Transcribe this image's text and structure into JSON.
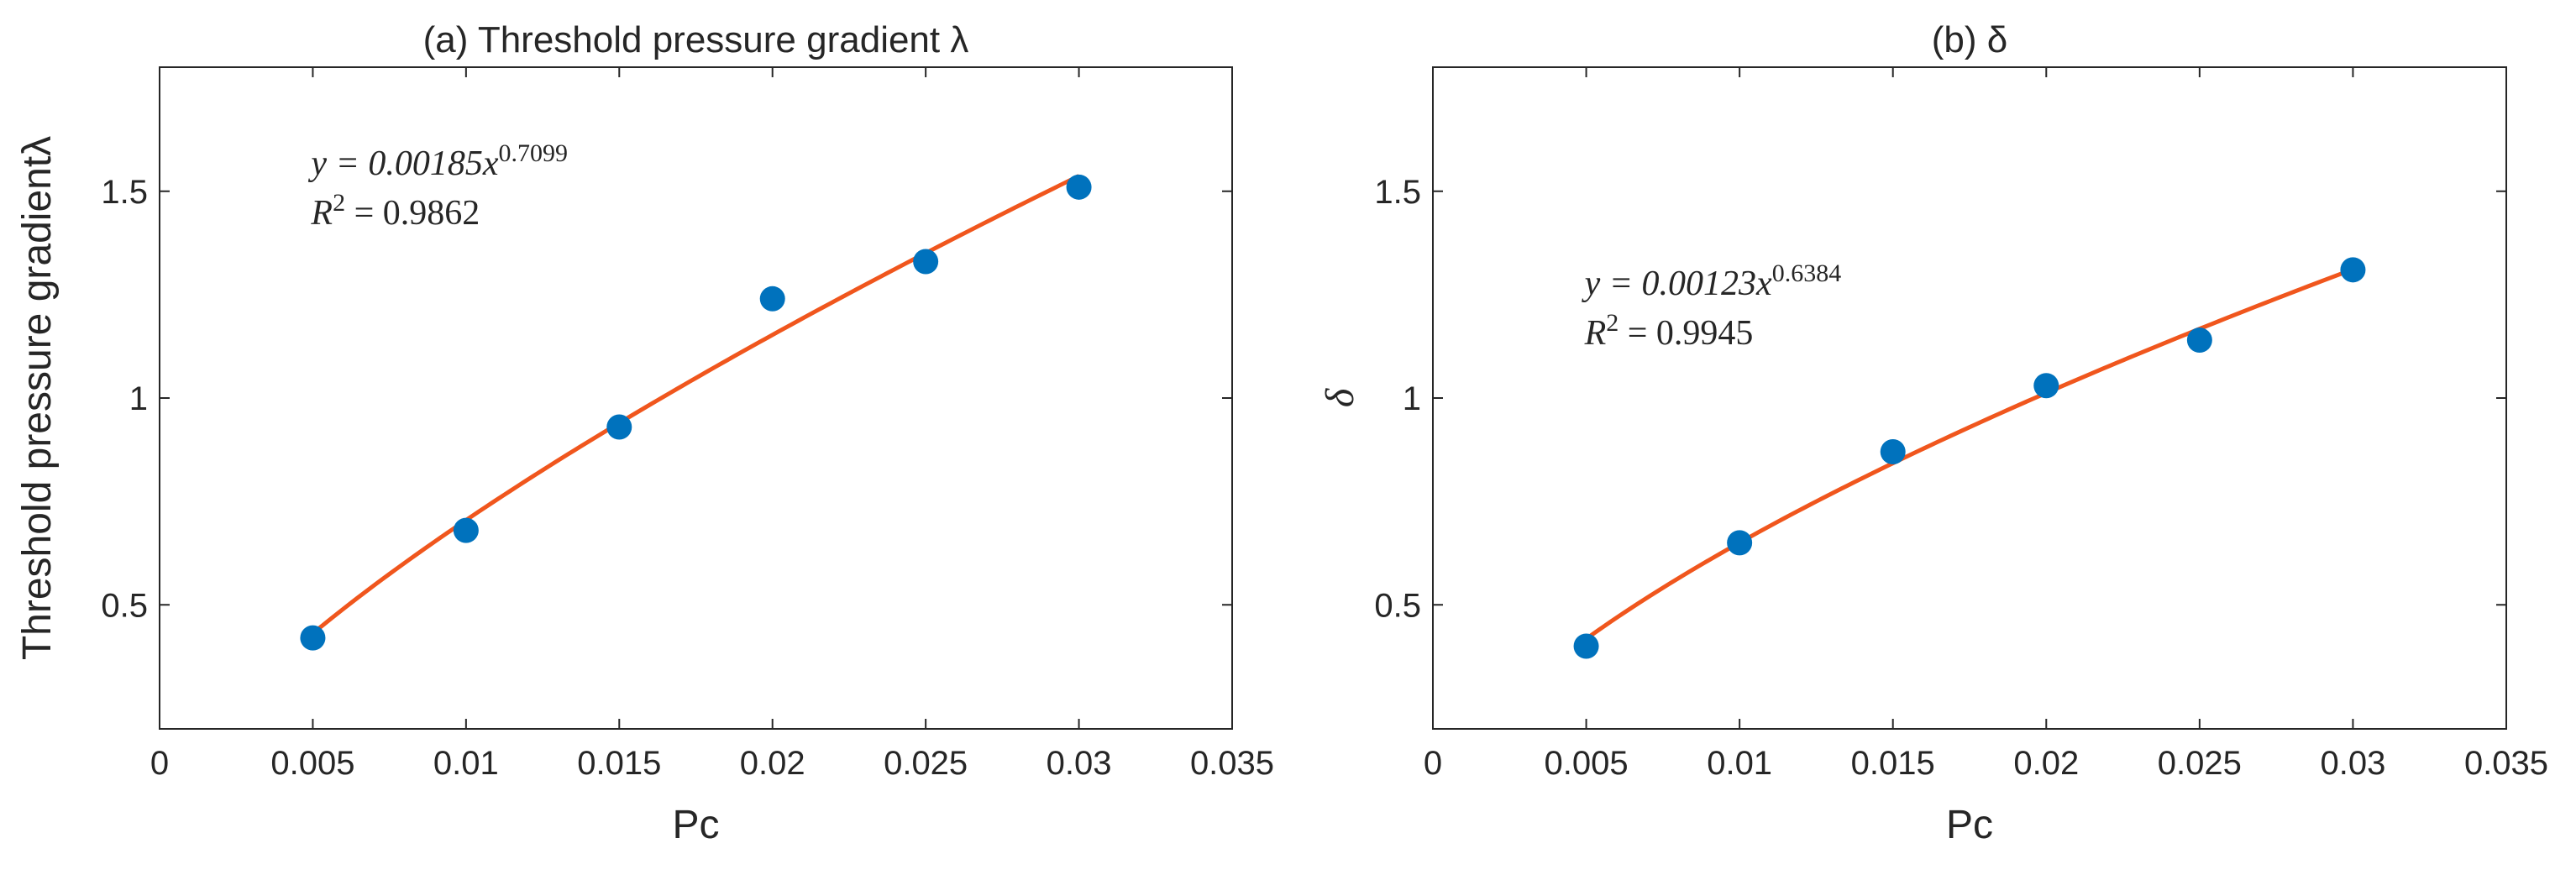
{
  "chart_data": [
    {
      "type": "scatter",
      "title": "(a) Threshold pressure gradient λ",
      "xlabel": "Pc",
      "ylabel": "Threshold pressure gradientλ",
      "xlim": [
        0,
        0.035
      ],
      "ylim": [
        0.2,
        1.8
      ],
      "xticks": [
        0,
        0.005,
        0.01,
        0.015,
        0.02,
        0.025,
        0.03,
        0.035
      ],
      "xtick_labels": [
        "0",
        "0.005",
        "0.01",
        "0.015",
        "0.02",
        "0.025",
        "0.03",
        "0.035"
      ],
      "yticks": [
        0.5,
        1,
        1.5
      ],
      "ytick_labels": [
        "0.5",
        "1",
        "1.5"
      ],
      "grid": false,
      "series": [
        {
          "type": "scatter",
          "x": [
            0.005,
            0.01,
            0.015,
            0.02,
            0.025,
            0.03
          ],
          "y": [
            0.42,
            0.68,
            0.93,
            1.24,
            1.33,
            1.51
          ]
        },
        {
          "type": "line",
          "fit": "power",
          "coefficient": 0.00185,
          "exponent": 0.7099,
          "x_range": [
            0.005,
            0.03
          ]
        }
      ],
      "annotation": {
        "equation_lhs": "y = 0.00185x",
        "equation_exp": "0.7099",
        "r2_lhs": "R",
        "r2_sup": "2",
        "r2_rhs": " = 0.9862"
      },
      "colors": {
        "points": "#0072BD",
        "fit": "#F0561D"
      }
    },
    {
      "type": "scatter",
      "title": "(b) δ",
      "xlabel": "Pc",
      "ylabel": "δ",
      "xlim": [
        0,
        0.035
      ],
      "ylim": [
        0.2,
        1.8
      ],
      "xticks": [
        0,
        0.005,
        0.01,
        0.015,
        0.02,
        0.025,
        0.03,
        0.035
      ],
      "xtick_labels": [
        "0",
        "0.005",
        "0.01",
        "0.015",
        "0.02",
        "0.025",
        "0.03",
        "0.035"
      ],
      "yticks": [
        0.5,
        1,
        1.5
      ],
      "ytick_labels": [
        "0.5",
        "1",
        "1.5"
      ],
      "grid": false,
      "series": [
        {
          "type": "scatter",
          "x": [
            0.005,
            0.01,
            0.015,
            0.02,
            0.025,
            0.03
          ],
          "y": [
            0.4,
            0.65,
            0.87,
            1.03,
            1.14,
            1.31
          ]
        },
        {
          "type": "line",
          "fit": "power",
          "coefficient": 0.00123,
          "exponent": 0.6384,
          "x_range": [
            0.005,
            0.03
          ]
        }
      ],
      "annotation": {
        "equation_lhs": "y = 0.00123x",
        "equation_exp": "0.6384",
        "r2_lhs": "R",
        "r2_sup": "2",
        "r2_rhs": " = 0.9945"
      },
      "colors": {
        "points": "#0072BD",
        "fit": "#F0561D"
      }
    }
  ]
}
